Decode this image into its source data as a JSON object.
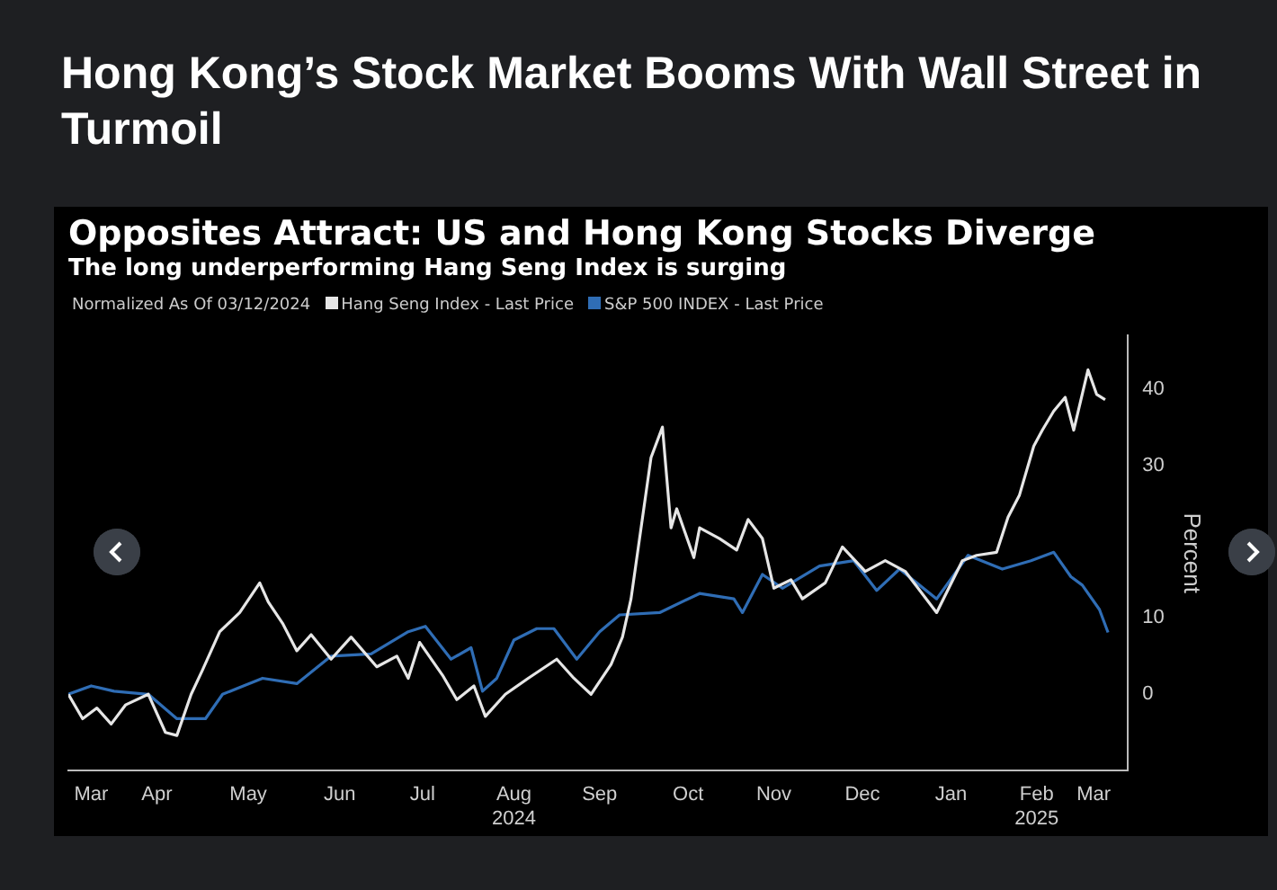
{
  "chart_data": {
    "type": "line",
    "title": "Hong Kong’s Stock Market Booms With Wall Street in Turmoil",
    "subtitle": "Opposites Attract: US and Hong Kong Stocks Diverge",
    "annotations": [
      "The long underperforming Hang Seng Index is surging",
      "Normalized As Of 03/12/2024"
    ],
    "ylabel": "Percent",
    "xlim": [
      "2024-03-12",
      "2025-03-18"
    ],
    "xticks": [
      {
        "value": "2024-03-20",
        "label": "Mar"
      },
      {
        "value": "2024-04-12",
        "label": "Apr"
      },
      {
        "value": "2024-05-14",
        "label": "May"
      },
      {
        "value": "2024-06-15",
        "label": "Jun"
      },
      {
        "value": "2024-07-14",
        "label": "Jul"
      },
      {
        "value": "2024-08-15",
        "label": "Aug\n2024"
      },
      {
        "value": "2024-09-14",
        "label": "Sep"
      },
      {
        "value": "2024-10-15",
        "label": "Oct"
      },
      {
        "value": "2024-11-14",
        "label": "Nov"
      },
      {
        "value": "2024-12-15",
        "label": "Dec"
      },
      {
        "value": "2025-01-15",
        "label": "Jan"
      },
      {
        "value": "2025-02-14",
        "label": "Feb\n2025"
      },
      {
        "value": "2025-03-06",
        "label": "Mar"
      }
    ],
    "ylim": [
      -10,
      47
    ],
    "yticks": [
      0,
      10,
      30,
      40
    ],
    "grid": false,
    "legend": "top left",
    "marker": "none",
    "line_style": "solid",
    "series": [
      {
        "name": "Hang Seng Index - Last Price",
        "color": "#e6e6e6",
        "x": [
          "2024-03-12",
          "2024-03-17",
          "2024-03-22",
          "2024-03-27",
          "2024-04-01",
          "2024-04-09",
          "2024-04-15",
          "2024-04-19",
          "2024-04-24",
          "2024-04-28",
          "2024-05-04",
          "2024-05-11",
          "2024-05-18",
          "2024-05-21",
          "2024-05-26",
          "2024-05-31",
          "2024-06-05",
          "2024-06-12",
          "2024-06-19",
          "2024-06-28",
          "2024-07-05",
          "2024-07-09",
          "2024-07-13",
          "2024-07-21",
          "2024-07-26",
          "2024-08-01",
          "2024-08-05",
          "2024-08-12",
          "2024-08-20",
          "2024-08-30",
          "2024-09-05",
          "2024-09-11",
          "2024-09-18",
          "2024-09-22",
          "2024-09-25",
          "2024-10-02",
          "2024-10-06",
          "2024-10-09",
          "2024-10-11",
          "2024-10-17",
          "2024-10-19",
          "2024-10-26",
          "2024-11-01",
          "2024-11-05",
          "2024-11-10",
          "2024-11-14",
          "2024-11-20",
          "2024-11-24",
          "2024-12-02",
          "2024-12-08",
          "2024-12-16",
          "2024-12-23",
          "2024-12-30",
          "2025-01-10",
          "2025-01-19",
          "2025-01-24",
          "2025-01-31",
          "2025-02-04",
          "2025-02-08",
          "2025-02-13",
          "2025-02-16",
          "2025-02-20",
          "2025-02-24",
          "2025-02-27",
          "2025-03-04",
          "2025-03-07",
          "2025-03-10"
        ],
        "values": [
          0,
          -3.2,
          -1.8,
          -3.9,
          -1.4,
          0,
          -5,
          -5.4,
          0,
          3.2,
          8.2,
          10.7,
          14.6,
          12.1,
          9.3,
          5.7,
          7.8,
          4.6,
          7.5,
          3.6,
          5,
          2.1,
          6.8,
          2.5,
          -0.7,
          1.1,
          -2.9,
          0,
          2.1,
          4.6,
          2.1,
          0,
          3.9,
          7.5,
          12.5,
          31,
          35,
          21.8,
          24.3,
          17.9,
          21.8,
          20.4,
          18.9,
          22.9,
          20.4,
          13.9,
          15,
          12.5,
          14.6,
          19.3,
          16.1,
          17.5,
          16.1,
          10.7,
          17.5,
          18.2,
          18.6,
          23.2,
          26.1,
          32.5,
          34.6,
          37.1,
          38.9,
          34.6,
          42.5,
          39.3,
          38.6
        ]
      },
      {
        "name": "S&P 500 INDEX - Last Price",
        "color": "#2f6db5",
        "x": [
          "2024-03-12",
          "2024-03-20",
          "2024-03-28",
          "2024-04-09",
          "2024-04-19",
          "2024-04-29",
          "2024-05-05",
          "2024-05-19",
          "2024-05-31",
          "2024-06-12",
          "2024-06-26",
          "2024-07-09",
          "2024-07-15",
          "2024-07-24",
          "2024-07-31",
          "2024-08-04",
          "2024-08-09",
          "2024-08-15",
          "2024-08-23",
          "2024-08-29",
          "2024-09-06",
          "2024-09-14",
          "2024-09-21",
          "2024-10-05",
          "2024-10-19",
          "2024-10-31",
          "2024-11-03",
          "2024-11-10",
          "2024-11-17",
          "2024-11-30",
          "2024-12-12",
          "2024-12-20",
          "2024-12-28",
          "2025-01-10",
          "2025-01-21",
          "2025-02-02",
          "2025-02-12",
          "2025-02-20",
          "2025-02-26",
          "2025-03-02",
          "2025-03-08",
          "2025-03-11"
        ],
        "values": [
          0,
          1.1,
          0.4,
          0,
          -3.2,
          -3.2,
          0,
          2.1,
          1.4,
          5,
          5.3,
          8.2,
          8.9,
          4.6,
          6.1,
          0.4,
          2.1,
          7.1,
          8.6,
          8.6,
          4.6,
          8.2,
          10.4,
          10.7,
          13.2,
          12.5,
          10.7,
          15.7,
          13.9,
          16.8,
          17.5,
          13.6,
          16.4,
          12.5,
          18.2,
          16.4,
          17.5,
          18.6,
          15.4,
          14.3,
          11.1,
          8.1
        ]
      }
    ]
  }
}
